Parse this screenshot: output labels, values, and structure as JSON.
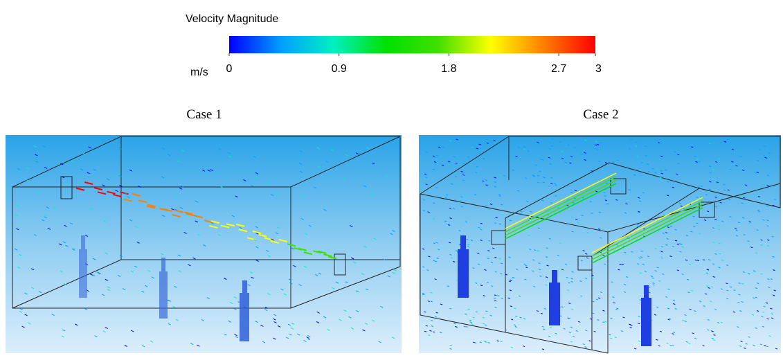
{
  "colorbar": {
    "title": "Velocity Magnitude",
    "unit": "m/s",
    "range": [
      0,
      3
    ],
    "ticks": [
      0,
      0.9,
      1.8,
      2.7,
      3
    ],
    "colors": [
      "#0000ff",
      "#00a0ff",
      "#00f0c0",
      "#00e000",
      "#40e000",
      "#ffff00",
      "#ff8000",
      "#ff0000"
    ]
  },
  "panels": [
    {
      "caption": "Case 1"
    },
    {
      "caption": "Case 2"
    }
  ]
}
